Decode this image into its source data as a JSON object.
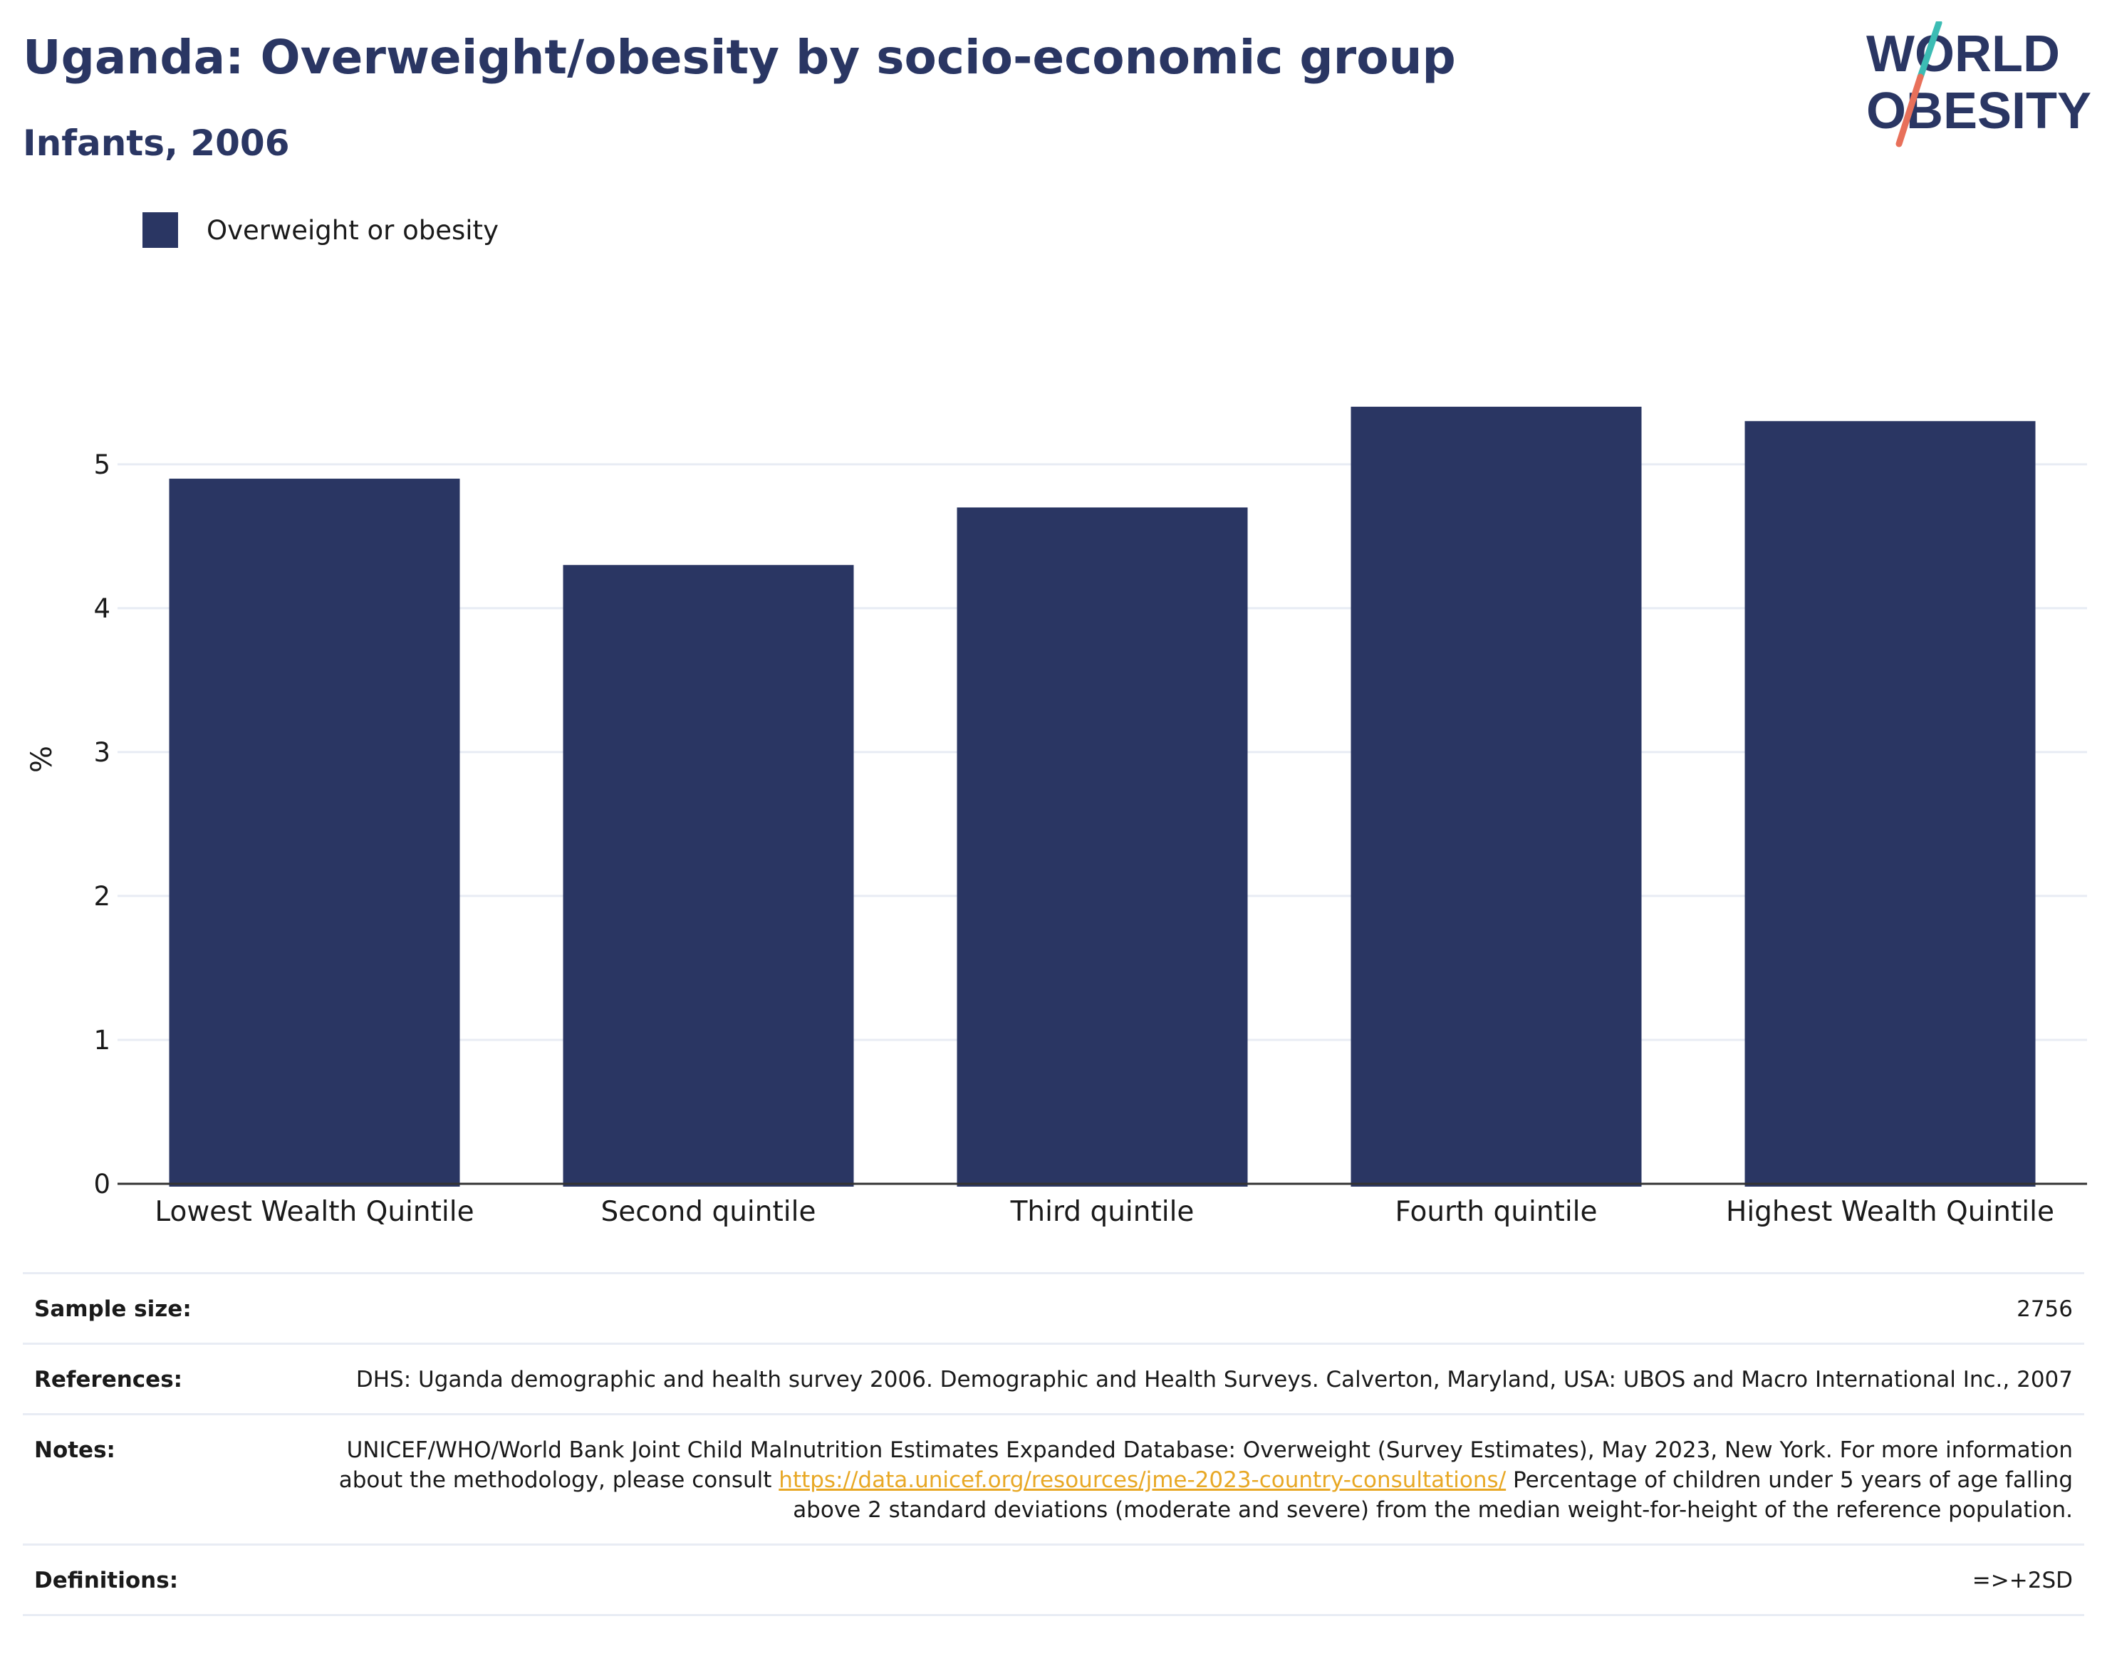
{
  "header": {
    "title": "Uganda: Overweight/obesity by socio-economic group",
    "subtitle": "Infants, 2006"
  },
  "logo": {
    "line1": "WORLD",
    "line2": "OBESITY",
    "colors": {
      "text": "#2a3663",
      "slash_top": "#3cbcb4",
      "slash_bottom": "#e8705a"
    }
  },
  "colors": {
    "bar": "#2a3663",
    "grid": "#e8ecf4",
    "axis": "#333333",
    "link": "#e8a825"
  },
  "chart_data": {
    "type": "bar",
    "categories": [
      "Lowest Wealth Quintile",
      "Second quintile",
      "Third quintile",
      "Fourth quintile",
      "Highest Wealth Quintile"
    ],
    "series": [
      {
        "name": "Overweight or obesity",
        "values": [
          4.9,
          4.3,
          4.7,
          5.4,
          5.3
        ]
      }
    ],
    "ylabel": "%",
    "xlabel": "",
    "ylim": [
      0,
      5.9
    ],
    "yticks": [
      0,
      1,
      2,
      3,
      4,
      5
    ],
    "grid": true,
    "legend_position": "top-left"
  },
  "info": {
    "sample_size": {
      "label": "Sample size:",
      "value": "2756"
    },
    "references": {
      "label": "References:",
      "value": "DHS: Uganda demographic and health survey 2006. Demographic and Health Surveys. Calverton, Maryland, USA: UBOS and Macro International Inc., 2007"
    },
    "notes": {
      "label": "Notes:",
      "text_before": "UNICEF/WHO/World Bank Joint Child Malnutrition Estimates Expanded Database: Overweight (Survey Estimates), May 2023, New York. For more information about the methodology, please consult ",
      "link": "https://data.unicef.org/resources/jme-2023-country-consultations/",
      "text_after": " Percentage of children under 5 years of age falling above 2 standard deviations (moderate and severe) from the median weight-for-height of the reference population."
    },
    "definitions": {
      "label": "Definitions:",
      "value": "=>+2SD"
    }
  }
}
